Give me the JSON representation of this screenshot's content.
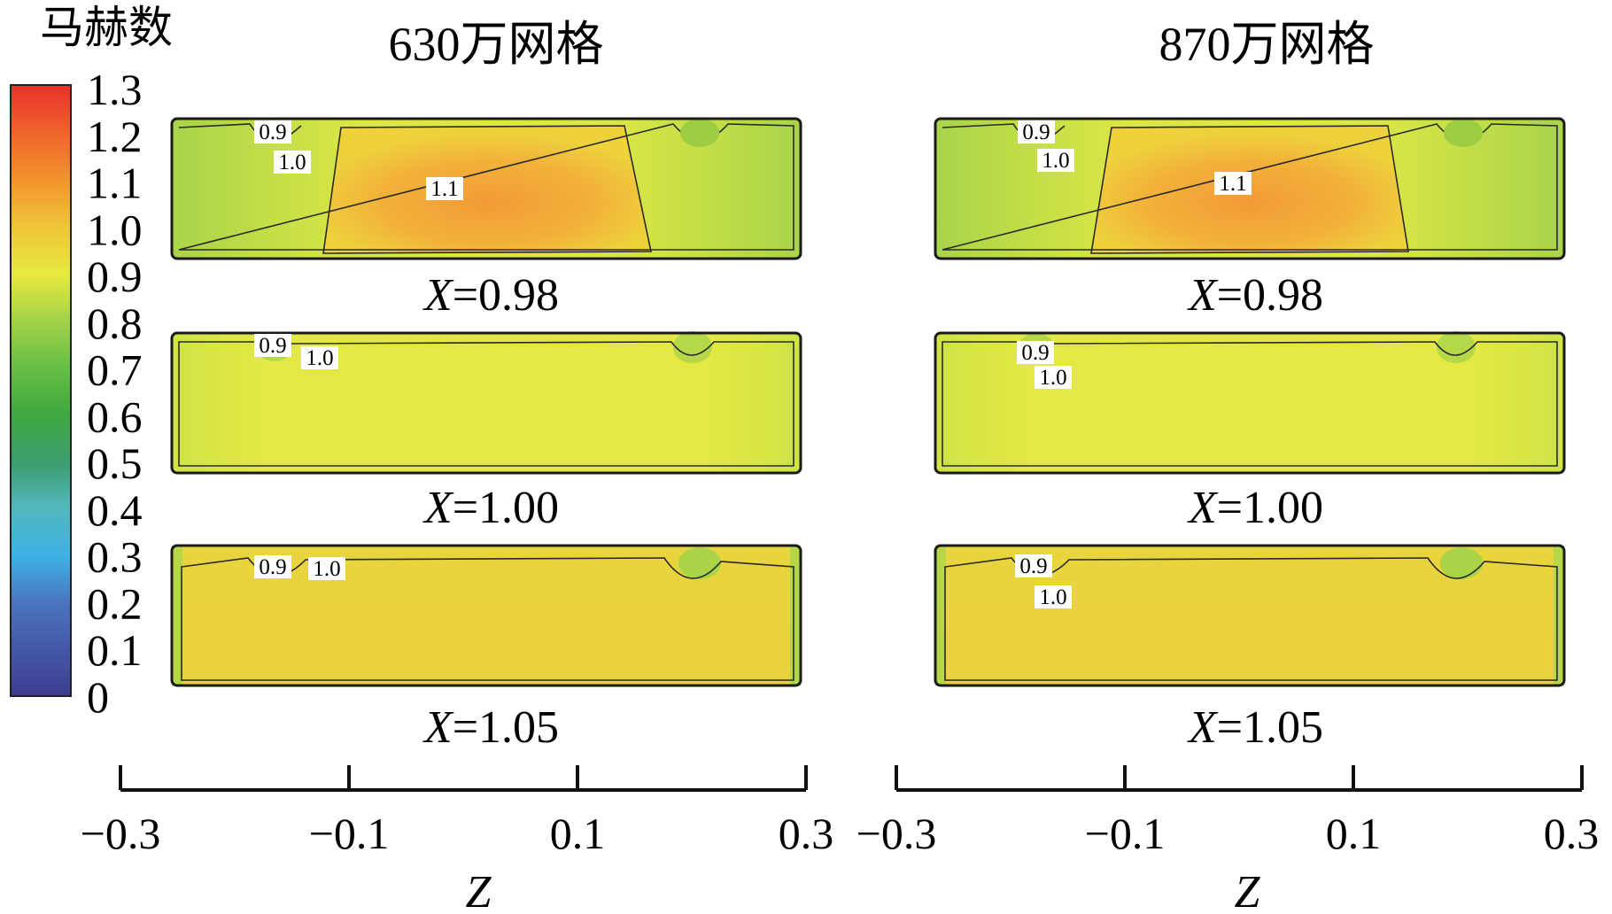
{
  "legend": {
    "title": "马赫数",
    "ticks": [
      "1.3",
      "1.2",
      "1.1",
      "1.0",
      "0.9",
      "0.8",
      "0.7",
      "0.6",
      "0.5",
      "0.4",
      "0.3",
      "0.2",
      "0.1",
      "0"
    ],
    "colors": [
      "#e8312a",
      "#f0652c",
      "#f3962f",
      "#eec437",
      "#e8e93f",
      "#a7d447",
      "#68bf44",
      "#3fa83f",
      "#3c9d70",
      "#52b7bb",
      "#3eb2e6",
      "#4b73bd",
      "#3d3c8f"
    ]
  },
  "columns": [
    {
      "title": "630万网格",
      "panels": [
        {
          "x_label": "X=0.98",
          "contour_labels": [
            "0.9",
            "1.0",
            "1.1"
          ]
        },
        {
          "x_label": "X=1.00",
          "contour_labels": [
            "0.9",
            "1.0"
          ]
        },
        {
          "x_label": "X=1.05",
          "contour_labels": [
            "0.9",
            "1.0"
          ]
        }
      ],
      "axis": {
        "ticks": [
          "−0.3",
          "−0.1",
          "0.1",
          "0.3"
        ],
        "label": "Z"
      }
    },
    {
      "title": "870万网格",
      "panels": [
        {
          "x_label": "X=0.98",
          "contour_labels": [
            "0.9",
            "1.0",
            "1.1"
          ]
        },
        {
          "x_label": "X=1.00",
          "contour_labels": [
            "0.9",
            "1.0"
          ]
        },
        {
          "x_label": "X=1.05",
          "contour_labels": [
            "0.9",
            "1.0"
          ]
        }
      ],
      "axis": {
        "ticks": [
          "−0.3",
          "−0.1",
          "0.1",
          "0.3"
        ],
        "label": "Z"
      }
    }
  ]
}
